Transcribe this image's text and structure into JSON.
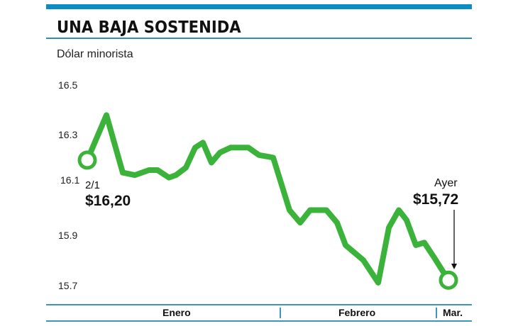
{
  "header": {
    "title": "UNA BAJA SOSTENIDA",
    "subtitle": "Dólar minorista"
  },
  "colors": {
    "accent_bar": "#0b8cc4",
    "rules": "#3a97b8",
    "line": "#3bb33b"
  },
  "y_axis": {
    "ticks": [
      "16.5",
      "16.3",
      "16.1",
      "15.9",
      "15.7"
    ]
  },
  "x_axis": {
    "months": [
      "Enero",
      "Febrero",
      "Mar."
    ]
  },
  "annotations": {
    "start_date": "2/1",
    "start_value": "$16,20",
    "end_label": "Ayer",
    "end_value": "$15,72"
  },
  "chart_data": {
    "type": "line",
    "title": "UNA BAJA SOSTENIDA",
    "subtitle": "Dólar minorista",
    "xlabel": "",
    "ylabel": "",
    "ylim": [
      15.65,
      16.5
    ],
    "yticks": [
      16.5,
      16.3,
      16.1,
      15.9,
      15.7
    ],
    "x_categories": [
      "Enero",
      "Febrero",
      "Mar."
    ],
    "grid": false,
    "legend": null,
    "series": [
      {
        "name": "Dólar minorista",
        "values": [
          16.2,
          16.38,
          16.15,
          16.14,
          16.16,
          16.16,
          16.13,
          16.14,
          16.17,
          16.25,
          16.27,
          16.19,
          16.23,
          16.25,
          16.25,
          16.22,
          16.21,
          16.0,
          15.95,
          16.0,
          16.0,
          15.95,
          15.86,
          15.8,
          15.71,
          15.93,
          16.0,
          15.96,
          15.86,
          15.87,
          15.81,
          15.72
        ]
      }
    ],
    "annotations": [
      {
        "label": "2/1",
        "value": "$16,20",
        "position": "start"
      },
      {
        "label": "Ayer",
        "value": "$15,72",
        "position": "end"
      }
    ]
  }
}
